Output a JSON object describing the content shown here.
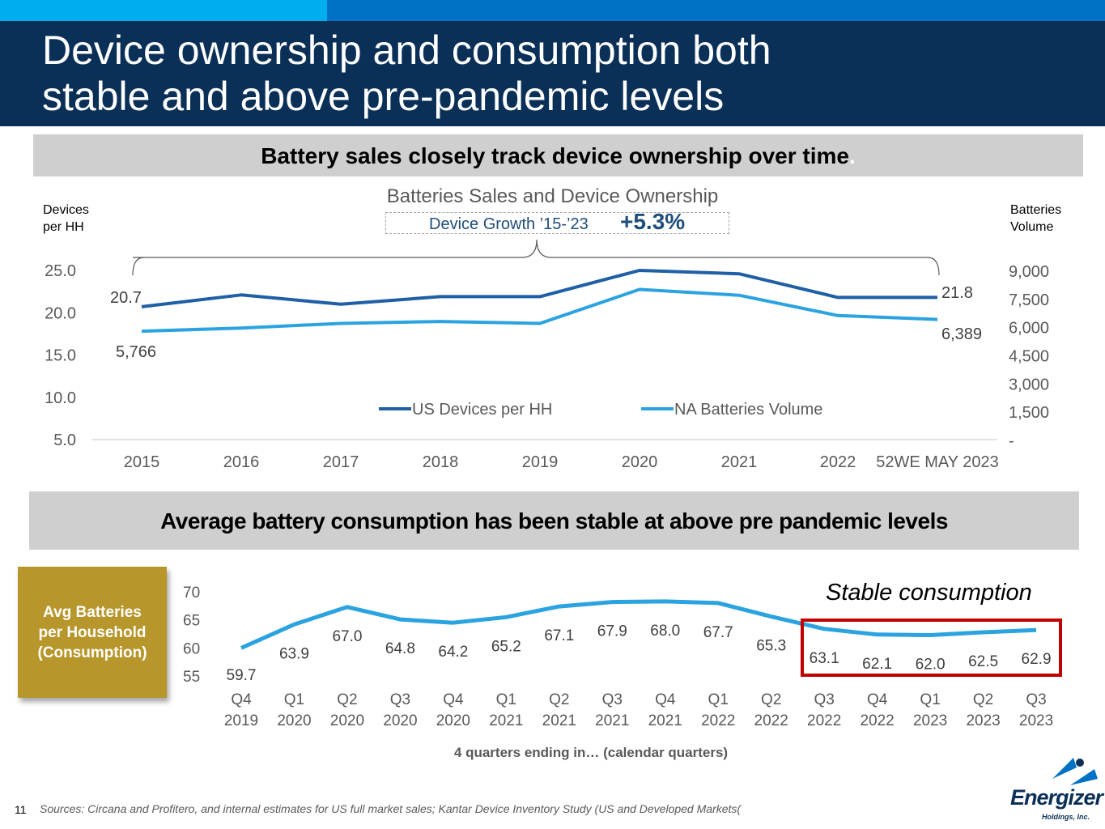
{
  "colors": {
    "dark_navy": "#0B3057",
    "brand_blue": "#0072C6",
    "light_blue": "#00AEEF",
    "series1": "#1F5FA6",
    "series2": "#2BA3E0",
    "gold": "#B7962B",
    "highlight": "#C00000"
  },
  "header": {
    "title_line1": "Device ownership and consumption both",
    "title_line2": "stable and above pre-pandemic levels"
  },
  "banner1": {
    "text": "Battery sales closely track device ownership over time",
    "period": "."
  },
  "banner2": {
    "text": "Average battery consumption has been stable at above pre pandemic levels"
  },
  "chart1": {
    "left_axis_title_line1": "Devices",
    "left_axis_title_line2": "per HH",
    "right_axis_title_line1": "Batteries",
    "right_axis_title_line2": "Volume",
    "growth_label": "Device Growth ’15-’23",
    "growth_value": "+5.3%",
    "start_devices_label": "20.7",
    "start_volume_label": "5,766",
    "end_devices_label": "21.8",
    "end_volume_label": "6,389"
  },
  "chart_data": [
    {
      "type": "line",
      "title": "Batteries Sales and Device Ownership",
      "categories": [
        "2015",
        "2016",
        "2017",
        "2018",
        "2019",
        "2020",
        "2021",
        "2022",
        "52WE MAY 2023"
      ],
      "series": [
        {
          "name": "US Devices per HH",
          "axis": "left",
          "color": "#1F5FA6",
          "values": [
            20.7,
            22.1,
            21.0,
            21.9,
            21.9,
            25.0,
            24.6,
            21.8,
            21.8
          ]
        },
        {
          "name": "NA Batteries Volume",
          "axis": "right",
          "color": "#2BA3E0",
          "values": [
            5766,
            5932,
            6181,
            6284,
            6181,
            7990,
            7680,
            6595,
            6389
          ]
        }
      ],
      "y_left": {
        "ylim": [
          5.0,
          25.0
        ],
        "ticks": [
          "25.0",
          "20.0",
          "15.0",
          "10.0",
          "5.0"
        ],
        "tick_values": [
          25,
          20,
          15,
          10,
          5
        ]
      },
      "y_right": {
        "ylim": [
          0,
          9000
        ],
        "ticks": [
          "9,000",
          "7,500",
          "6,000",
          "4,500",
          "3,000",
          "1,500",
          "-"
        ],
        "tick_values": [
          9000,
          7500,
          6000,
          4500,
          3000,
          1500,
          0
        ]
      },
      "legend": "bottom-center"
    },
    {
      "type": "line",
      "title": "Avg Batteries per Household (Consumption)",
      "xlabel": "4 quarters ending in… (calendar quarters)",
      "categories": [
        [
          "Q4",
          "2019"
        ],
        [
          "Q1",
          "2020"
        ],
        [
          "Q2",
          "2020"
        ],
        [
          "Q3",
          "2020"
        ],
        [
          "Q4",
          "2020"
        ],
        [
          "Q1",
          "2021"
        ],
        [
          "Q2",
          "2021"
        ],
        [
          "Q3",
          "2021"
        ],
        [
          "Q4",
          "2021"
        ],
        [
          "Q1",
          "2022"
        ],
        [
          "Q2",
          "2022"
        ],
        [
          "Q3",
          "2022"
        ],
        [
          "Q4",
          "2022"
        ],
        [
          "Q1",
          "2023"
        ],
        [
          "Q2",
          "2023"
        ],
        [
          "Q3",
          "2023"
        ]
      ],
      "values": [
        59.7,
        63.9,
        67.0,
        64.8,
        64.2,
        65.2,
        67.1,
        67.9,
        68.0,
        67.7,
        65.3,
        63.1,
        62.1,
        62.0,
        62.5,
        62.9
      ],
      "labels": [
        "59.7",
        "63.9",
        "67.0",
        "64.8",
        "64.2",
        "65.2",
        "67.1",
        "67.9",
        "68.0",
        "67.7",
        "65.3",
        "63.1",
        "62.1",
        "62.0",
        "62.5",
        "62.9"
      ],
      "ylim": [
        55,
        70
      ],
      "ticks": [
        "70",
        "65",
        "60",
        "55"
      ],
      "tick_values": [
        70,
        65,
        60,
        55
      ],
      "annotation": "Stable consumption"
    }
  ],
  "side_label": {
    "line1": "Avg Batteries",
    "line2": "per Household",
    "line3": "(Consumption)"
  },
  "footer": {
    "page_number": "11",
    "sources": "Sources:  Circana and Profitero, and internal estimates for US full market sales;  Kantar Device Inventory Study (US and Developed Markets(",
    "logo_text": "Energizer",
    "logo_sub": "Holdings, Inc."
  }
}
